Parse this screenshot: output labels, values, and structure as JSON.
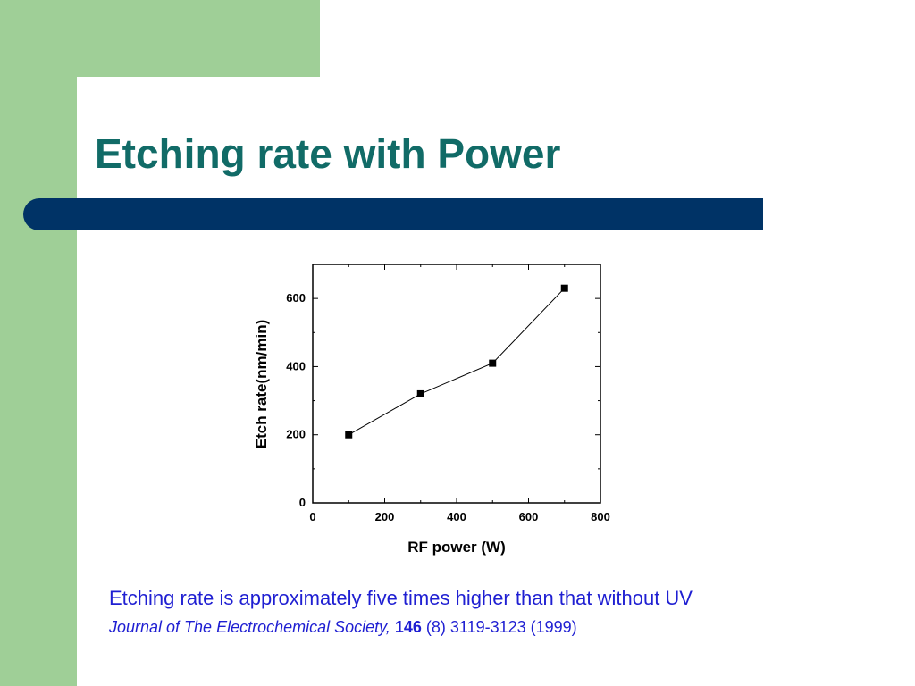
{
  "slide": {
    "title": "Etching rate with Power",
    "colors": {
      "background": "#ffffff",
      "accent_green": "#9fcf97",
      "title_teal": "#116b67",
      "bar_navy": "#003366",
      "text_blue": "#1f1fd2"
    },
    "caption": "Etching rate is approximately five times higher than that without UV",
    "citation": {
      "journal": "Journal of The Electrochemical Society,",
      "volume": "146",
      "rest": "(8) 3119-3123 (1999)"
    }
  },
  "chart_data": {
    "type": "line",
    "title": "",
    "xlabel": "RF power (W)",
    "ylabel": "Etch rate(nm/min)",
    "xlim": [
      0,
      800
    ],
    "ylim": [
      0,
      700
    ],
    "xticks": [
      0,
      200,
      400,
      600,
      800
    ],
    "yticks": [
      0,
      200,
      400,
      600
    ],
    "grid": false,
    "marker": "square",
    "series": [
      {
        "x": [
          100,
          300,
          500,
          700
        ],
        "y": [
          200,
          320,
          410,
          630
        ]
      }
    ]
  }
}
